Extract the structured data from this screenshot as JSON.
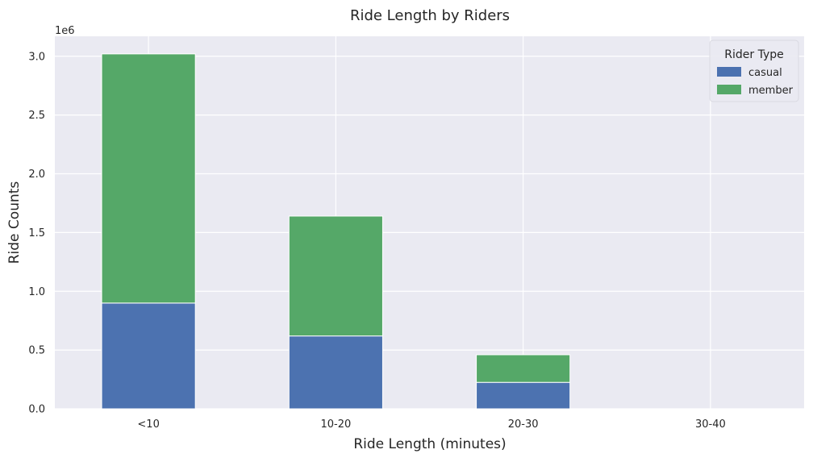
{
  "chart_data": {
    "type": "bar",
    "stacked": true,
    "title": "Ride Length by Riders",
    "xlabel": "Ride Length (minutes)",
    "ylabel": "Ride Counts",
    "y_offset_label": "1e6",
    "categories": [
      "<10",
      "10-20",
      "20-30",
      "30-40"
    ],
    "series": [
      {
        "name": "casual",
        "color": "#4c72b0",
        "values": [
          900000,
          620000,
          225000,
          0
        ]
      },
      {
        "name": "member",
        "color": "#55a868",
        "values": [
          2120000,
          1020000,
          235000,
          0
        ]
      }
    ],
    "ylim": [
      0,
      3170000
    ],
    "yticks": [
      0,
      500000,
      1000000,
      1500000,
      2000000,
      2500000,
      3000000
    ],
    "ytick_labels": [
      "0.0",
      "0.5",
      "1.0",
      "1.5",
      "2.0",
      "2.5",
      "3.0"
    ],
    "grid": true,
    "legend": {
      "title": "Rider Type",
      "placement": "top-right"
    },
    "background": "#eaeaf2"
  }
}
